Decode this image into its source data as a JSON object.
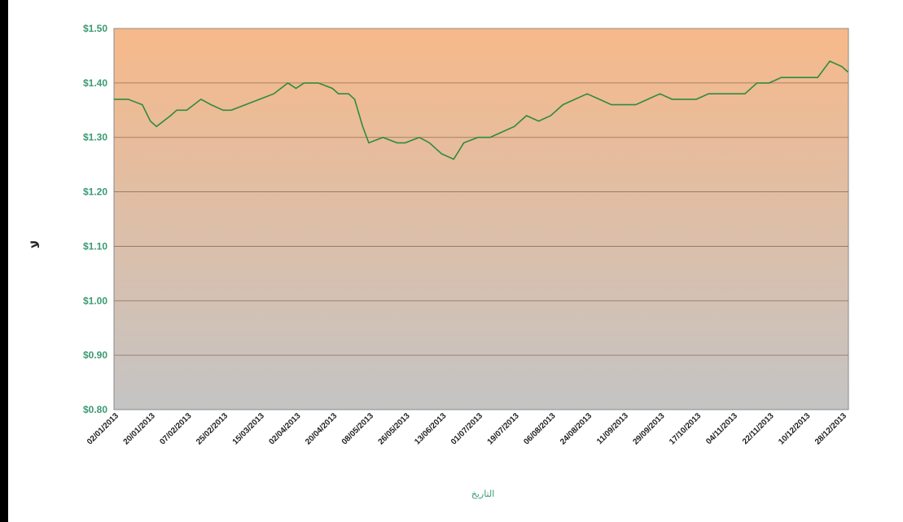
{
  "chart_data": {
    "type": "line",
    "xlabel": "التاريخ",
    "ylabel": "لا",
    "ylim": [
      0.8,
      1.5
    ],
    "y_ticks": [
      "$0.80",
      "$0.90",
      "$1.00",
      "$1.10",
      "$1.20",
      "$1.30",
      "$1.40",
      "$1.50"
    ],
    "x_ticks": [
      "02/01/2013",
      "20/01/2013",
      "07/02/2013",
      "25/02/2013",
      "15/03/2013",
      "02/04/2013",
      "20/04/2013",
      "08/05/2013",
      "26/05/2013",
      "13/06/2013",
      "01/07/2013",
      "19/07/2013",
      "06/08/2013",
      "24/08/2013",
      "11/09/2013",
      "29/09/2013",
      "17/10/2013",
      "04/11/2013",
      "22/11/2013",
      "10/12/2013",
      "28/12/2013"
    ],
    "grid": true,
    "colors": {
      "line": "#2e8b3e",
      "bg_top": "#f7b98a",
      "bg_bottom": "#c4c4c4",
      "grid": "#8f6f5c"
    },
    "series": [
      {
        "x": [
          "02/01/2013",
          "09/01/2013",
          "16/01/2013",
          "20/01/2013",
          "23/01/2013",
          "30/01/2013",
          "02/02/2013",
          "07/02/2013",
          "14/02/2013",
          "19/02/2013",
          "25/02/2013",
          "01/03/2013",
          "08/03/2013",
          "15/03/2013",
          "22/03/2013",
          "29/03/2013",
          "02/04/2013",
          "06/04/2013",
          "13/04/2013",
          "20/04/2013",
          "23/04/2013",
          "28/04/2013",
          "01/05/2013",
          "05/05/2013",
          "08/05/2013",
          "15/05/2013",
          "22/05/2013",
          "26/05/2013",
          "02/06/2013",
          "07/06/2013",
          "13/06/2013",
          "19/06/2013",
          "24/06/2013",
          "01/07/2013",
          "07/07/2013",
          "13/07/2013",
          "19/07/2013",
          "25/07/2013",
          "31/07/2013",
          "06/08/2013",
          "12/08/2013",
          "18/08/2013",
          "24/08/2013",
          "30/08/2013",
          "05/09/2013",
          "11/09/2013",
          "17/09/2013",
          "23/09/2013",
          "29/09/2013",
          "05/10/2013",
          "11/10/2013",
          "17/10/2013",
          "23/10/2013",
          "29/10/2013",
          "04/11/2013",
          "10/11/2013",
          "16/11/2013",
          "22/11/2013",
          "28/11/2013",
          "04/12/2013",
          "10/12/2013",
          "16/12/2013",
          "22/12/2013",
          "28/12/2013",
          "31/12/2013"
        ],
        "values": [
          1.37,
          1.37,
          1.36,
          1.33,
          1.32,
          1.34,
          1.35,
          1.35,
          1.37,
          1.36,
          1.35,
          1.35,
          1.36,
          1.37,
          1.38,
          1.4,
          1.39,
          1.4,
          1.4,
          1.39,
          1.38,
          1.38,
          1.37,
          1.32,
          1.29,
          1.3,
          1.29,
          1.29,
          1.3,
          1.29,
          1.27,
          1.26,
          1.29,
          1.3,
          1.3,
          1.31,
          1.32,
          1.34,
          1.33,
          1.34,
          1.36,
          1.37,
          1.38,
          1.37,
          1.36,
          1.36,
          1.36,
          1.37,
          1.38,
          1.37,
          1.37,
          1.37,
          1.38,
          1.38,
          1.38,
          1.38,
          1.4,
          1.4,
          1.41,
          1.41,
          1.41,
          1.41,
          1.44,
          1.43,
          1.42
        ]
      }
    ]
  }
}
